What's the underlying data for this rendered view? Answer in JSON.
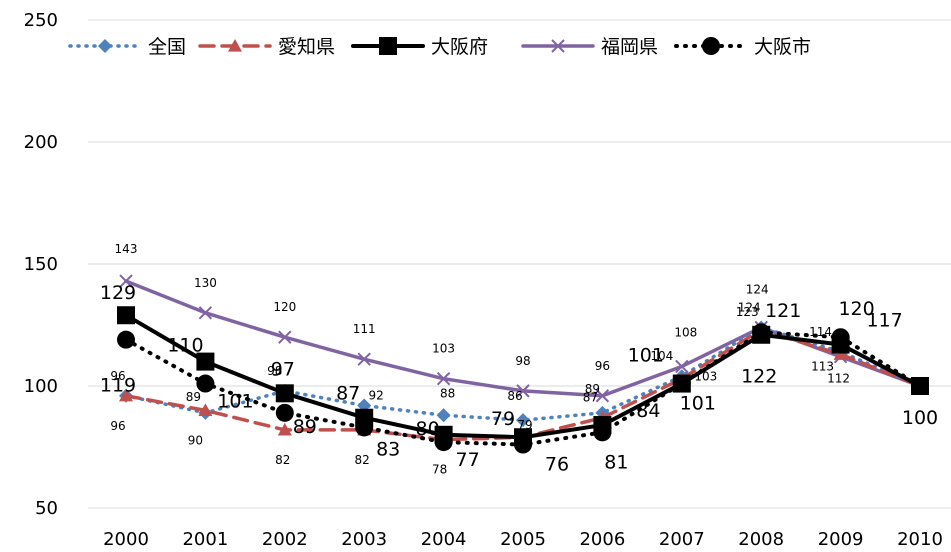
{
  "chart_data": {
    "type": "line",
    "x": [
      "2000",
      "2001",
      "2002",
      "2003",
      "2004",
      "2005",
      "2006",
      "2007",
      "2008",
      "2009",
      "2010"
    ],
    "ylim": [
      50,
      250
    ],
    "yticks": [
      250,
      200,
      150,
      100,
      50
    ],
    "grid": true,
    "legend_position": "top",
    "series": [
      {
        "name": "全国",
        "values": [
          96,
          89,
          98,
          92,
          88,
          86,
          89,
          104,
          124,
          114,
          100
        ],
        "color": "#4f81bd",
        "dash": "dotted",
        "marker": "diamond",
        "label_size": "small"
      },
      {
        "name": "愛知県",
        "values": [
          96,
          90,
          82,
          82,
          78,
          79,
          87,
          103,
          123,
          113,
          100
        ],
        "color": "#c0504d",
        "dash": "dashed",
        "marker": "triangle",
        "label_size": "small"
      },
      {
        "name": "大阪府",
        "values": [
          129,
          110,
          97,
          87,
          80,
          79,
          84,
          101,
          121,
          117,
          100
        ],
        "color": "#000000",
        "dash": "solid",
        "marker": "square",
        "label_size": "large"
      },
      {
        "name": "福岡県",
        "values": [
          143,
          130,
          120,
          111,
          103,
          98,
          96,
          108,
          124,
          112,
          100
        ],
        "color": "#8064a2",
        "dash": "solid",
        "marker": "x",
        "label_size": "small"
      },
      {
        "name": "大阪市",
        "values": [
          119,
          101,
          89,
          83,
          77,
          76,
          81,
          101,
          122,
          120,
          100
        ],
        "color": "#000000",
        "dash": "dotted",
        "marker": "circle",
        "label_size": "large"
      }
    ]
  }
}
